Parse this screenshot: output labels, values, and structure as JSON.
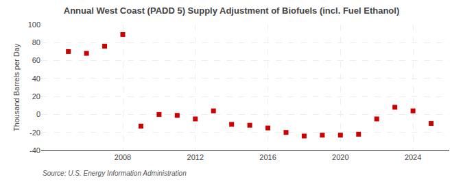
{
  "chart_data": {
    "type": "scatter",
    "title": "Annual West Coast (PADD 5) Supply Adjustment of Biofuels (incl. Fuel Ethanol)",
    "ylabel": "Thousand Barrels per Day",
    "annotation": "Source: U.S. Energy Information Administration",
    "x": [
      2005,
      2006,
      2007,
      2008,
      2009,
      2010,
      2011,
      2012,
      2013,
      2014,
      2015,
      2016,
      2017,
      2018,
      2019,
      2020,
      2021,
      2022,
      2023,
      2024,
      2025
    ],
    "values": [
      70,
      68,
      76,
      89,
      -13,
      0,
      -1,
      -5,
      4,
      -11,
      -12,
      -15,
      -20,
      -24,
      -23,
      -23,
      -22,
      -5,
      8,
      4,
      -10
    ],
    "color": "#cc0000",
    "marker": "square",
    "xlim": [
      2003.5,
      2026.0
    ],
    "xticks": [
      2008,
      2012,
      2016,
      2020,
      2024
    ],
    "ylim": [
      -40,
      100
    ],
    "yticks": [
      -40,
      -20,
      0,
      20,
      40,
      60,
      80,
      100
    ],
    "grid": true
  }
}
